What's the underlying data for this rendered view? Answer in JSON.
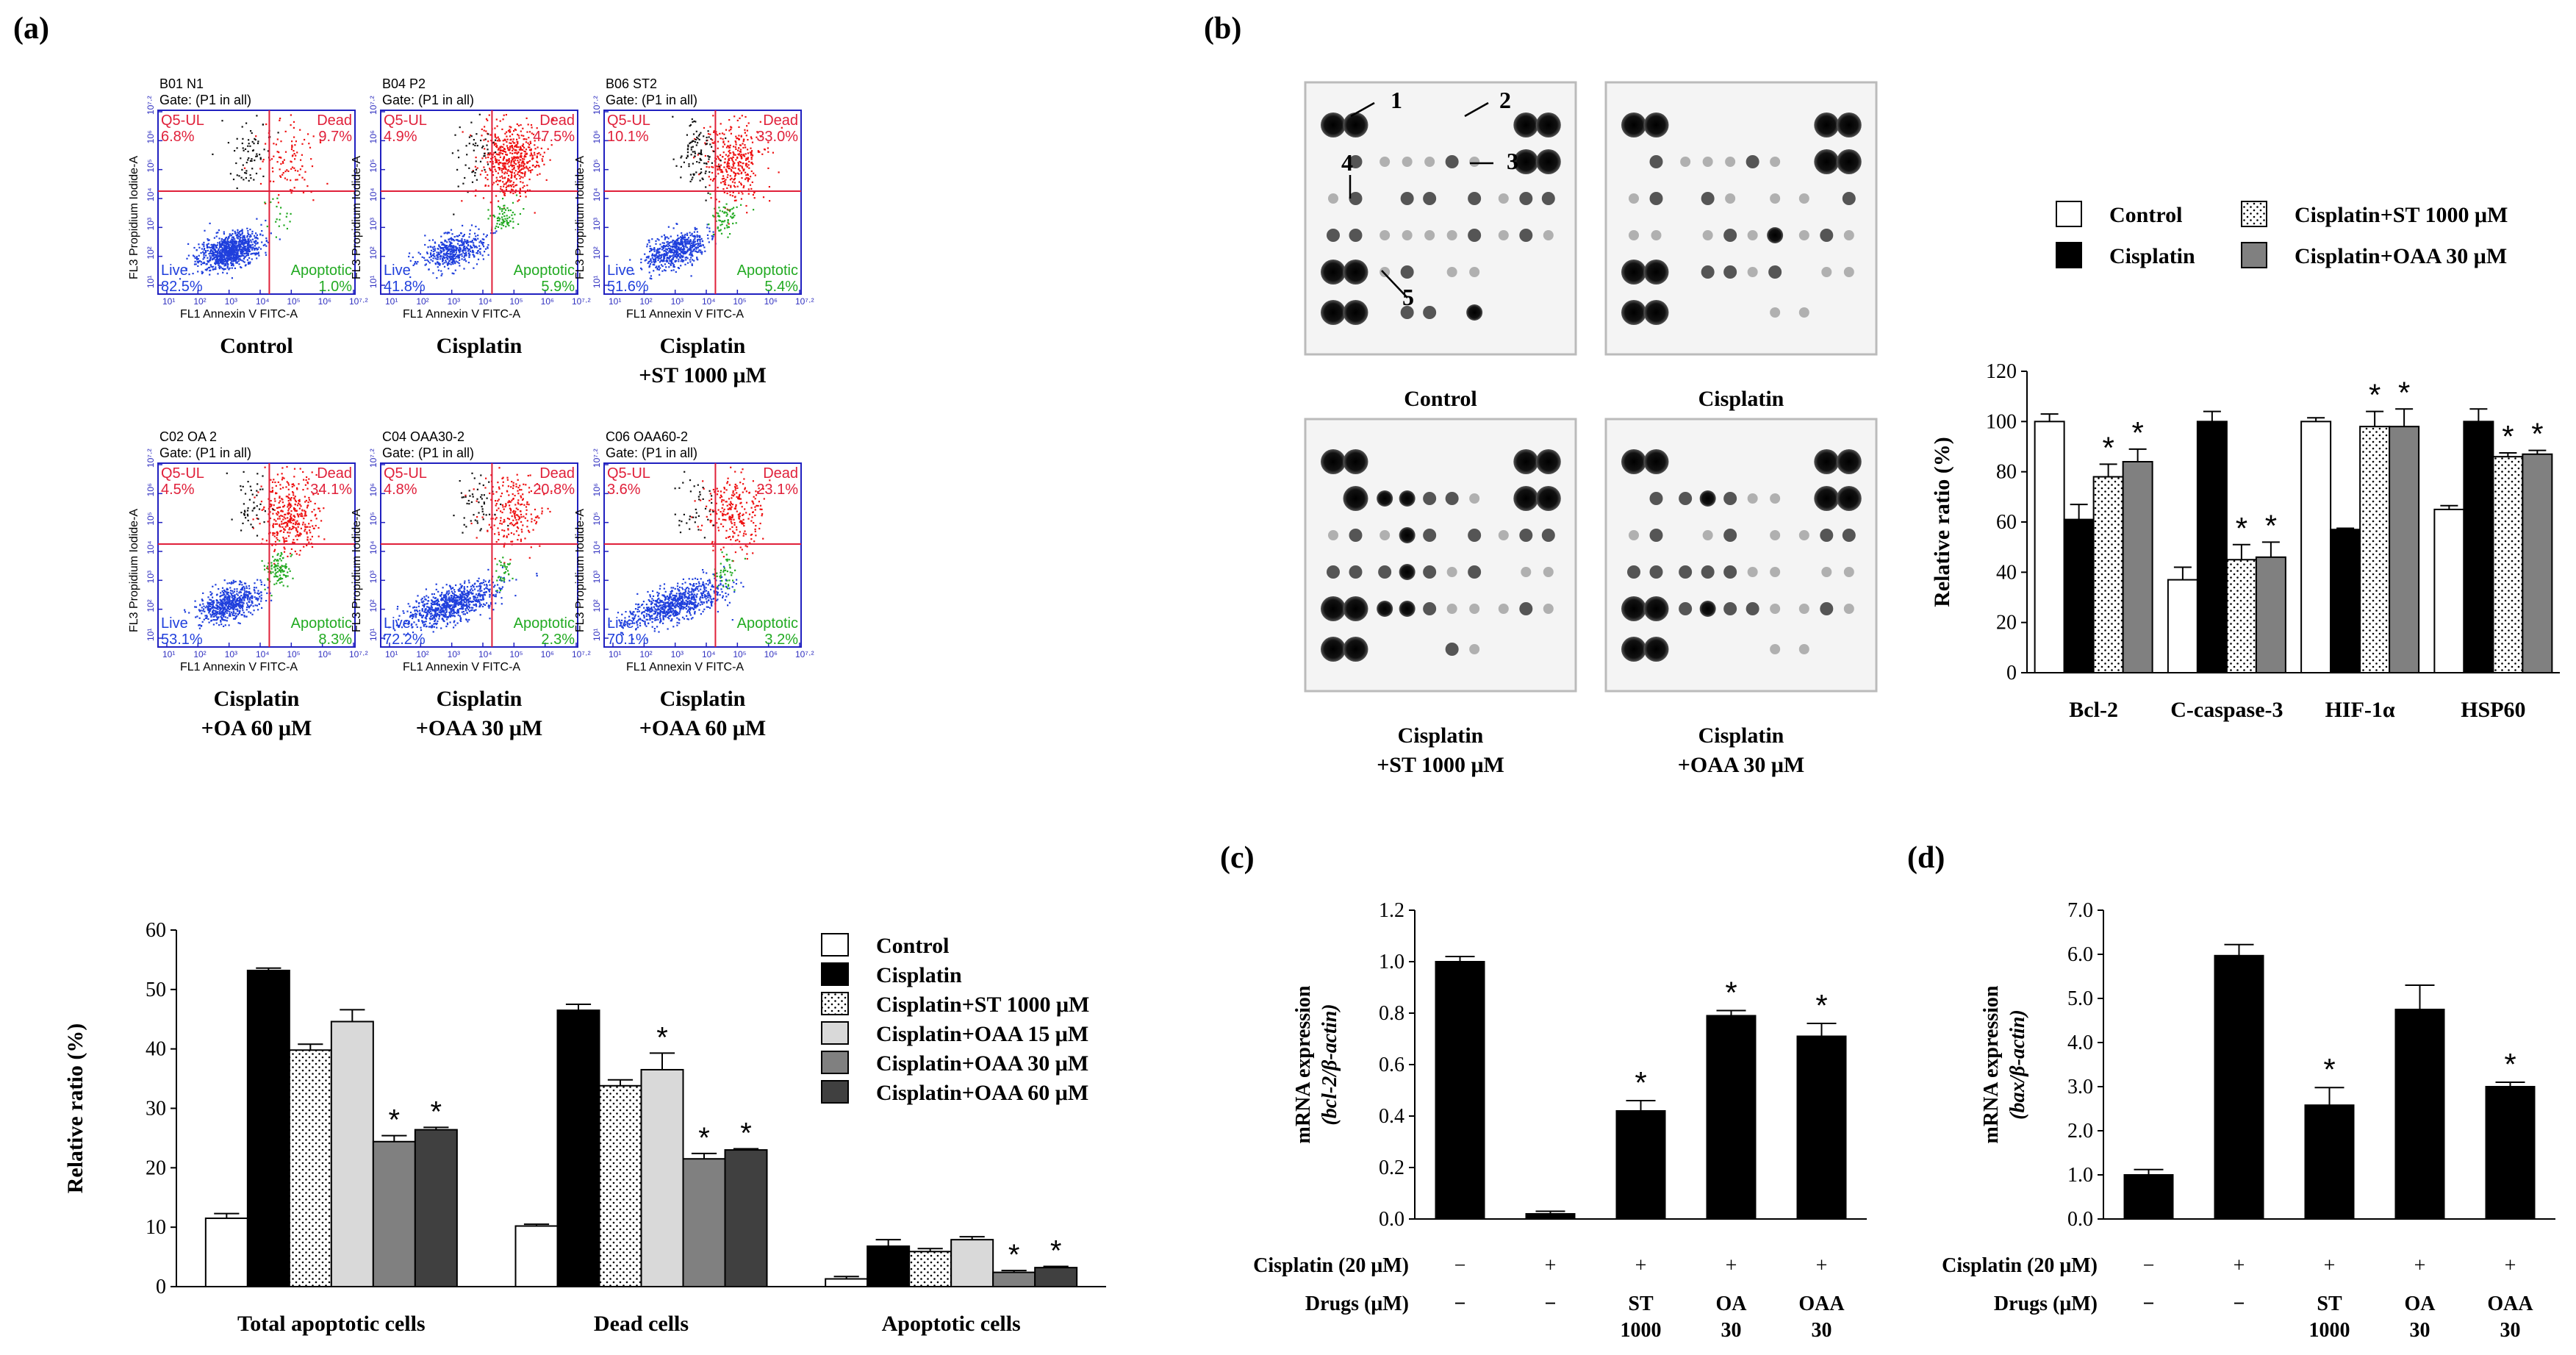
{
  "panel_labels": {
    "a": "(a)",
    "b": "(b)",
    "c": "(c)",
    "d": "(d)"
  },
  "flow": {
    "quad_labels": {
      "ul": "Q5-UL",
      "ur": "Dead",
      "ll": "Live",
      "lr": "Apoptotic"
    },
    "xaxis_label": "FL1 Annexin V FITC-A",
    "yaxis_label": "FL3 Propidium Iodide-A",
    "gate": "Gate: (P1 in all)",
    "ticks": [
      "10¹",
      "10²",
      "10³",
      "10⁴",
      "10⁵",
      "10⁶",
      "10⁷·²"
    ],
    "plots": [
      {
        "id": "B01 N1",
        "ul": "6.8%",
        "ur": "9.7%",
        "ll": "82.5%",
        "lr": "1.0%",
        "caption": [
          "Control"
        ]
      },
      {
        "id": "B04 P2",
        "ul": "4.9%",
        "ur": "47.5%",
        "ll": "41.8%",
        "lr": "5.9%",
        "caption": [
          "Cisplatin"
        ]
      },
      {
        "id": "B06 ST2",
        "ul": "10.1%",
        "ur": "33.0%",
        "ll": "51.6%",
        "lr": "5.4%",
        "caption": [
          "Cisplatin",
          "+ST 1000 μM"
        ]
      },
      {
        "id": "C02 OA 2",
        "ul": "4.5%",
        "ur": "34.1%",
        "ll": "53.1%",
        "lr": "8.3%",
        "caption": [
          "Cisplatin",
          "+OA 60 μM"
        ]
      },
      {
        "id": "C04 OAA30-2",
        "ul": "4.8%",
        "ur": "20.8%",
        "ll": "72.2%",
        "lr": "2.3%",
        "caption": [
          "Cisplatin",
          "+OAA 30 μM"
        ]
      },
      {
        "id": "C06 OAA60-2",
        "ul": "3.6%",
        "ur": "23.1%",
        "ll": "70.1%",
        "lr": "3.2%",
        "caption": [
          "Cisplatin",
          "+OAA 60 μM"
        ]
      }
    ]
  },
  "blots": {
    "markers": [
      "1",
      "2",
      "3",
      "4",
      "5"
    ],
    "captions": [
      [
        "Control"
      ],
      [
        "Cisplatin"
      ],
      [
        "Cisplatin",
        "+ST 1000 μM"
      ],
      [
        "Cisplatin",
        "+OAA 30 μM"
      ]
    ]
  },
  "chart_data": [
    {
      "type": "bar",
      "panel": "(a) bottom",
      "categories": [
        "Total apoptotic cells",
        "Dead cells",
        "Apoptotic cells"
      ],
      "ylabel": "Relative ratio (%)",
      "ylim": [
        0,
        60
      ],
      "yticks": [
        "0",
        "10",
        "20",
        "30",
        "40",
        "50",
        "60"
      ],
      "series": [
        {
          "name": "Control",
          "color": "#ffffff",
          "pattern": "none",
          "values": [
            11.5,
            10.2,
            1.3
          ],
          "err": [
            0.8,
            0.3,
            0.4
          ],
          "star": [
            false,
            false,
            false
          ]
        },
        {
          "name": "Cisplatin",
          "color": "#000000",
          "pattern": "none",
          "values": [
            53.2,
            46.5,
            6.8
          ],
          "err": [
            0.4,
            1.0,
            1.1
          ],
          "star": [
            false,
            false,
            false
          ]
        },
        {
          "name": "Cisplatin+ST 1000 μM",
          "color": "#ffffff",
          "pattern": "dots",
          "values": [
            39.8,
            33.8,
            5.9
          ],
          "err": [
            1.0,
            1.0,
            0.5
          ],
          "star": [
            false,
            false,
            false
          ]
        },
        {
          "name": "Cisplatin+OAA 15 μM",
          "color": "#d9d9d9",
          "pattern": "none",
          "values": [
            44.6,
            36.5,
            7.9
          ],
          "err": [
            2.0,
            2.8,
            0.5
          ],
          "star": [
            false,
            true,
            false
          ]
        },
        {
          "name": "Cisplatin+OAA 30 μM",
          "color": "#808080",
          "pattern": "none",
          "values": [
            24.4,
            21.5,
            2.4
          ],
          "err": [
            1.0,
            0.9,
            0.3
          ],
          "star": [
            true,
            true,
            true
          ]
        },
        {
          "name": "Cisplatin+OAA 60 μM",
          "color": "#404040",
          "pattern": "none",
          "values": [
            26.4,
            23.0,
            3.2
          ],
          "err": [
            0.4,
            0.2,
            0.2
          ],
          "star": [
            true,
            true,
            true
          ]
        }
      ]
    },
    {
      "type": "bar",
      "panel": "(b) right",
      "categories": [
        "Bcl-2",
        "C-caspase-3",
        "HIF-1α",
        "HSP60"
      ],
      "ylabel": "Relative ratio (%)",
      "ylim": [
        0,
        120
      ],
      "yticks": [
        "0",
        "20",
        "40",
        "60",
        "80",
        "100",
        "120"
      ],
      "series": [
        {
          "name": "Control",
          "color": "#ffffff",
          "pattern": "none",
          "values": [
            100,
            37,
            100,
            65
          ],
          "err": [
            3,
            5,
            1.5,
            1.5
          ],
          "star": [
            false,
            false,
            false,
            false
          ]
        },
        {
          "name": "Cisplatin",
          "color": "#000000",
          "pattern": "none",
          "values": [
            61,
            100,
            57,
            100
          ],
          "err": [
            6,
            4,
            0.5,
            5
          ],
          "star": [
            false,
            false,
            false,
            false
          ]
        },
        {
          "name": "Cisplatin+ST 1000 μM",
          "color": "#ffffff",
          "pattern": "dots",
          "values": [
            78,
            45,
            98,
            86
          ],
          "err": [
            5,
            6,
            6,
            1.5
          ],
          "star": [
            true,
            true,
            true,
            true
          ]
        },
        {
          "name": "Cisplatin+OAA 30 μM",
          "color": "#808080",
          "pattern": "none",
          "values": [
            84,
            46,
            98,
            87
          ],
          "err": [
            5,
            6,
            7,
            1.5
          ],
          "star": [
            true,
            true,
            true,
            true
          ]
        }
      ]
    },
    {
      "type": "bar",
      "panel": "(c)",
      "ylabel": "mRNA expression",
      "ylabel2": "(bcl-2/β-actin)",
      "ylim": [
        0,
        1.2
      ],
      "yticks": [
        "0.0",
        "0.2",
        "0.4",
        "0.6",
        "0.8",
        "1.0",
        "1.2"
      ],
      "row1_label": "Cisplatin (20 μM)",
      "row2_label": "Drugs (μM)",
      "cisplatin": [
        "−",
        "+",
        "+",
        "+",
        "+"
      ],
      "drugs": [
        [
          "−"
        ],
        [
          "−"
        ],
        [
          "ST",
          "1000"
        ],
        [
          "OA",
          "30"
        ],
        [
          "OAA",
          "30"
        ]
      ],
      "values": [
        1.0,
        0.02,
        0.42,
        0.79,
        0.71
      ],
      "err": [
        0.02,
        0.01,
        0.04,
        0.02,
        0.05
      ],
      "star": [
        false,
        false,
        true,
        true,
        true
      ]
    },
    {
      "type": "bar",
      "panel": "(d)",
      "ylabel": "mRNA expression",
      "ylabel2": "(bax/β-actin)",
      "ylim": [
        0,
        7
      ],
      "yticks": [
        "0.0",
        "1.0",
        "2.0",
        "3.0",
        "4.0",
        "5.0",
        "6.0",
        "7.0"
      ],
      "row1_label": "Cisplatin (20 μM)",
      "row2_label": "Drugs (μM)",
      "cisplatin": [
        "−",
        "+",
        "+",
        "+",
        "+"
      ],
      "drugs": [
        [
          "−"
        ],
        [
          "−"
        ],
        [
          "ST",
          "1000"
        ],
        [
          "OA",
          "30"
        ],
        [
          "OAA",
          "30"
        ]
      ],
      "values": [
        1.0,
        5.97,
        2.58,
        4.75,
        3.0
      ],
      "err": [
        0.12,
        0.25,
        0.4,
        0.55,
        0.1
      ],
      "star": [
        false,
        false,
        true,
        false,
        true
      ]
    }
  ]
}
